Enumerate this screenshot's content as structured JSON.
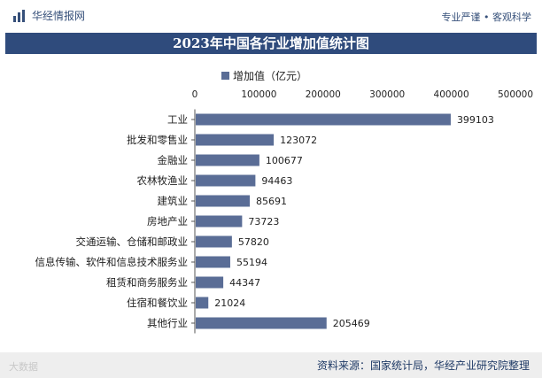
{
  "header": {
    "brand_name": "华经情报网",
    "slogan": "专业严谨 • 客观科学",
    "logo_icon": "bar-logo-icon"
  },
  "title": "2023年中国各行业增加值统计图",
  "footer": {
    "watermark_left": "大数据",
    "source": "资料来源：国家统计局，华经产业研究院整理"
  },
  "colors": {
    "title_bg": "#2f4b7c",
    "bar": "#5a6d96",
    "brand_text": "#36507a"
  },
  "chart_data": {
    "type": "bar",
    "orientation": "horizontal",
    "categories": [
      "工业",
      "批发和零售业",
      "金融业",
      "农林牧渔业",
      "建筑业",
      "房地产业",
      "交通运输、仓储和邮政业",
      "信息传输、软件和信息技术服务业",
      "租赁和商务服务业",
      "住宿和餐饮业",
      "其他行业"
    ],
    "series": [
      {
        "name": "增加值（亿元）",
        "values": [
          399103,
          123072,
          100677,
          94463,
          85691,
          73723,
          57820,
          55194,
          44347,
          21024,
          205469
        ]
      }
    ],
    "xlim": [
      0,
      500000
    ],
    "xticks": [
      0,
      100000,
      200000,
      300000,
      400000,
      500000
    ],
    "xaxis_position": "top",
    "legend_position": "top",
    "grid": false
  }
}
